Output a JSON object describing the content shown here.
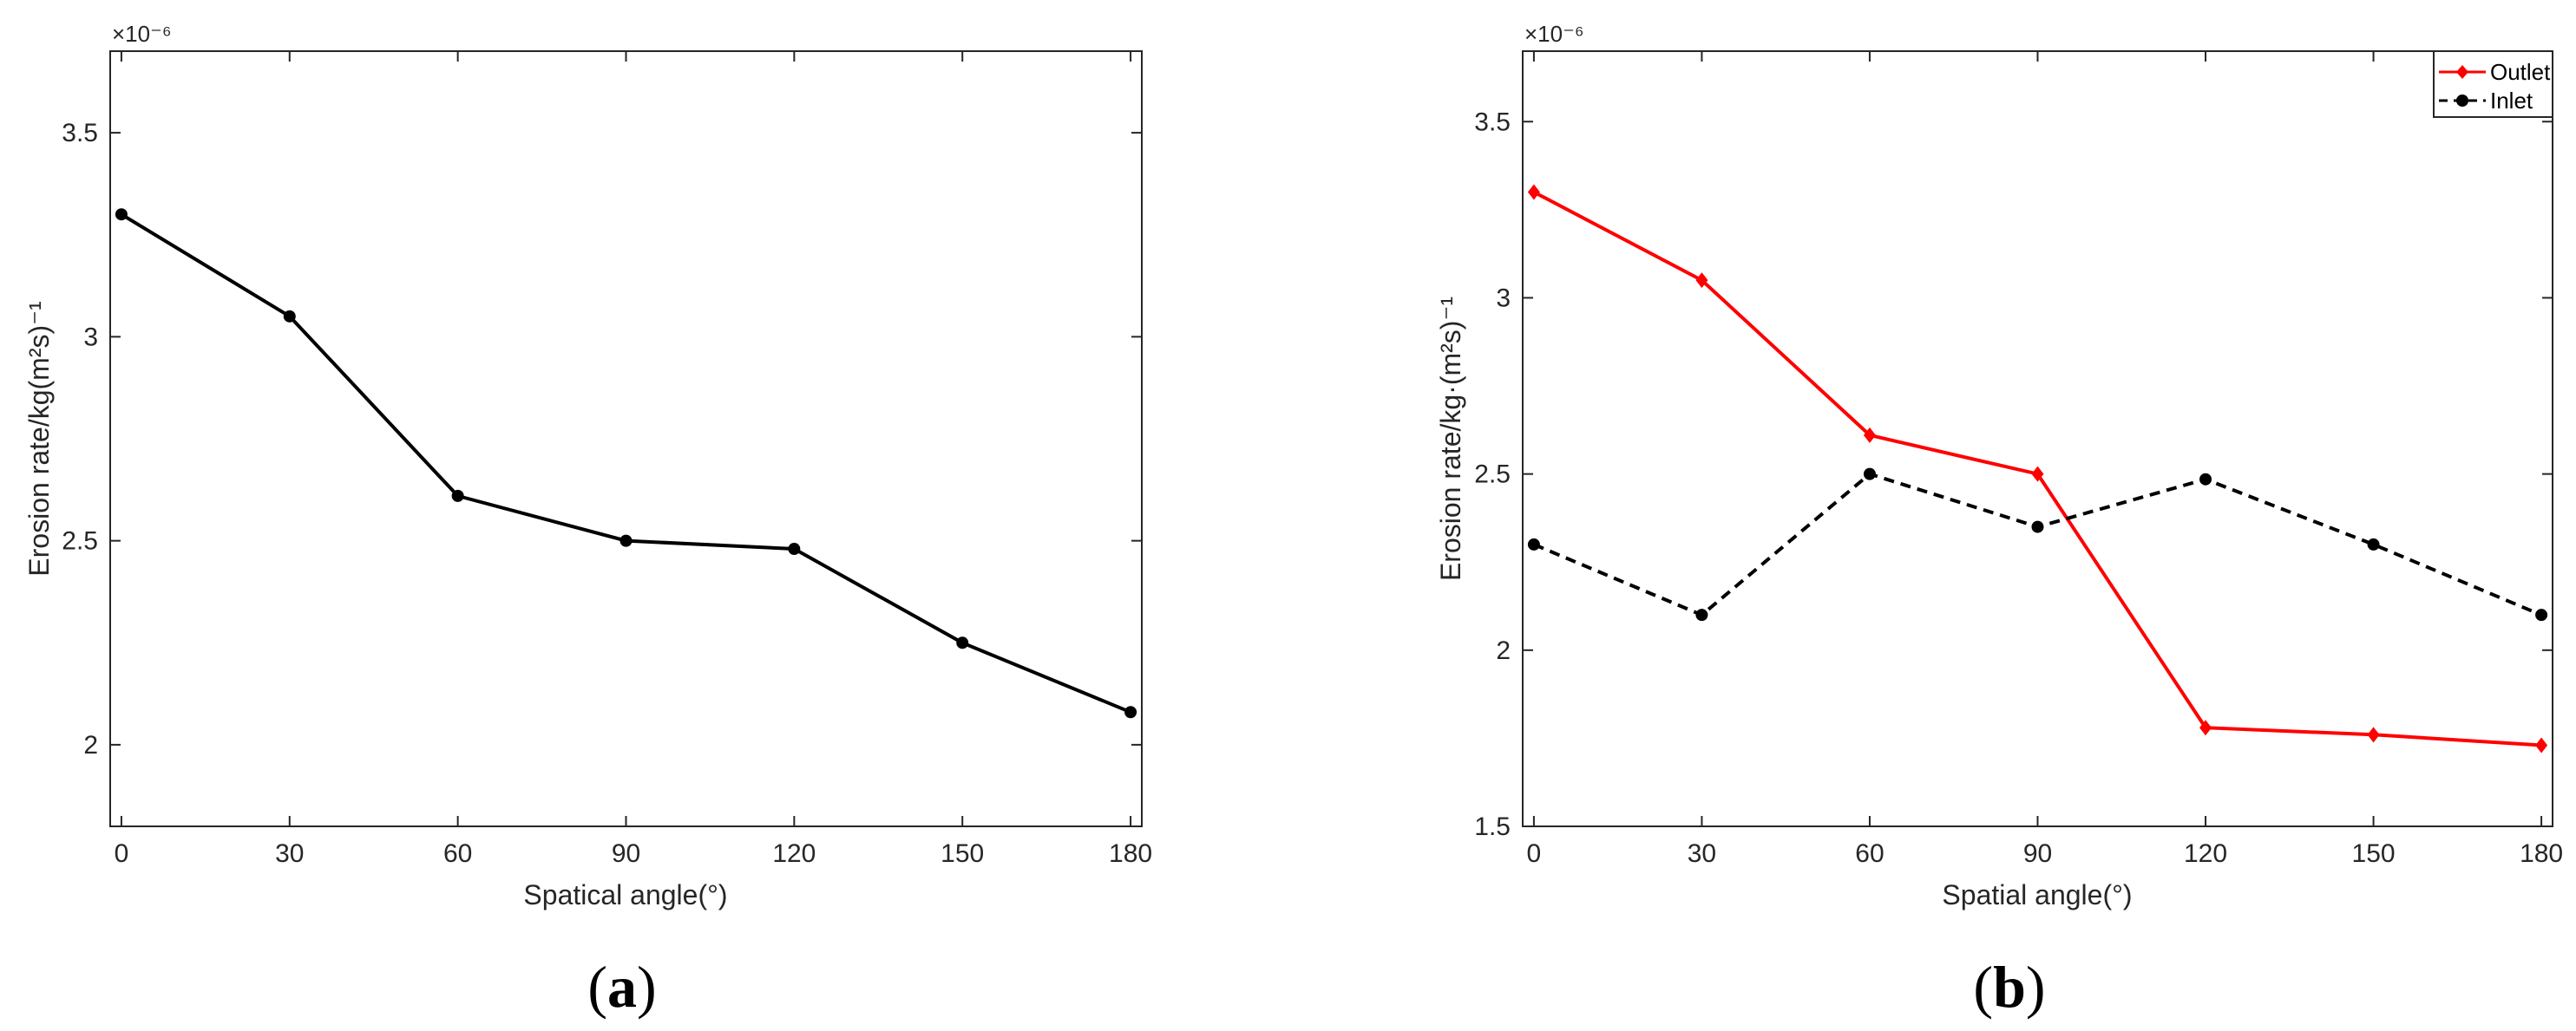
{
  "chart_data": [
    {
      "type": "line",
      "panel_label": "a",
      "xlabel": "Spatical angle(°)",
      "ylabel": "Erosion rate/kg(m²s)⁻¹",
      "y_multiplier": "×10⁻⁶",
      "xlim": [
        -2,
        182
      ],
      "ylim": [
        1.8,
        3.7
      ],
      "xticks": [
        0,
        30,
        60,
        90,
        120,
        150,
        180
      ],
      "yticks": [
        2,
        2.5,
        3,
        3.5
      ],
      "grid": false,
      "series": [
        {
          "color": "#000000",
          "marker": "circle",
          "linestyle": "solid",
          "x": [
            0,
            30,
            60,
            90,
            120,
            150,
            180
          ],
          "values": [
            3.3,
            3.05,
            2.61,
            2.5,
            2.48,
            2.25,
            2.08
          ]
        }
      ]
    },
    {
      "type": "line",
      "panel_label": "b",
      "xlabel": "Spatial angle(°)",
      "ylabel": "Erosion rate/kg·(m²s)⁻¹",
      "y_multiplier": "×10⁻⁶",
      "xlim": [
        -2,
        182
      ],
      "ylim": [
        1.5,
        3.7
      ],
      "xticks": [
        0,
        30,
        60,
        90,
        120,
        150,
        180
      ],
      "yticks": [
        1.5,
        2,
        2.5,
        3,
        3.5
      ],
      "grid": false,
      "legend_position": "top-right",
      "series": [
        {
          "name": "Outlet",
          "color": "#ff0000",
          "marker": "diamond",
          "linestyle": "solid",
          "x": [
            0,
            30,
            60,
            90,
            120,
            150,
            180
          ],
          "values": [
            3.3,
            3.05,
            2.61,
            2.5,
            1.78,
            1.76,
            1.73
          ]
        },
        {
          "name": "Inlet",
          "color": "#000000",
          "marker": "circle",
          "linestyle": "dashed",
          "x": [
            0,
            30,
            60,
            90,
            120,
            150,
            180
          ],
          "values": [
            2.3,
            2.1,
            2.5,
            2.35,
            2.485,
            2.3,
            2.1
          ]
        }
      ]
    }
  ]
}
